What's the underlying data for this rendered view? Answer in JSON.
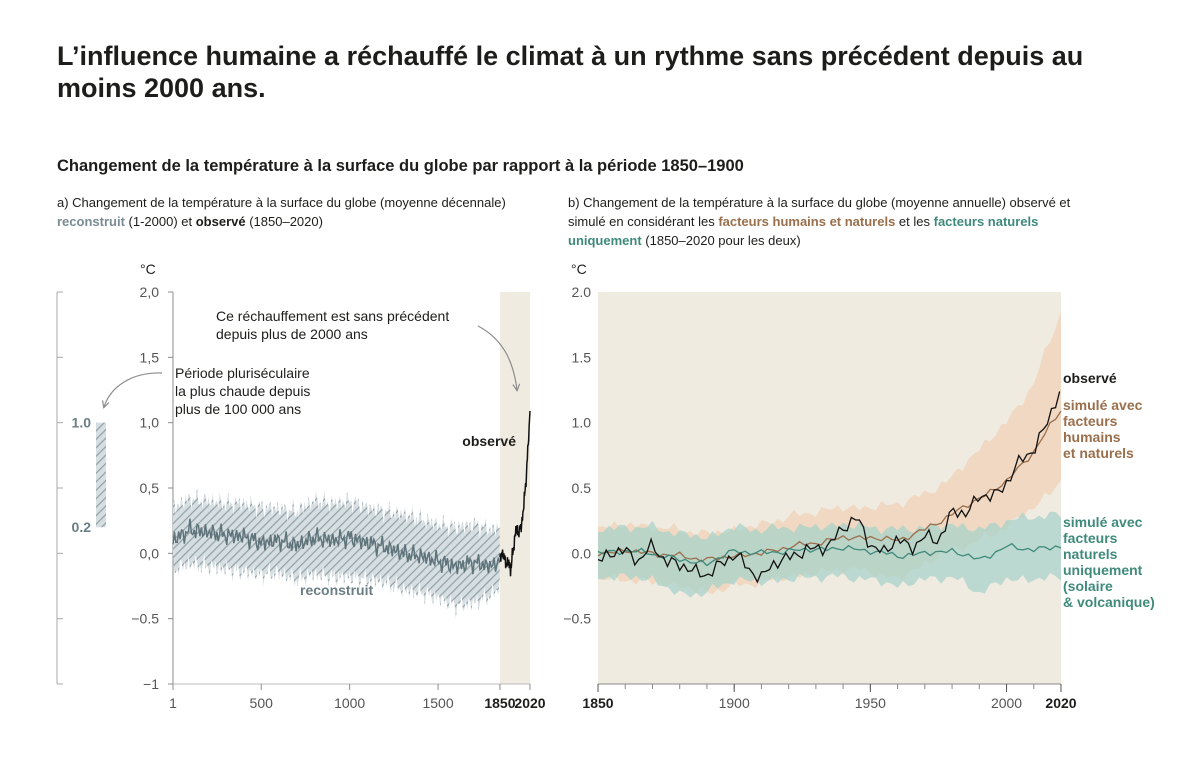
{
  "title": "L’influence humaine a réchauffé le climat à un rythme sans précédent depuis au moins 2000 ans.",
  "subtitle": "Changement de la température à la surface du globe par rapport à la période 1850–1900",
  "panel_a": {
    "caption_pre": "a) Changement de la température à la surface du globe (moyenne décennale) ",
    "caption_reconstructed": "reconstruit",
    "caption_mid": " (1-2000) et ",
    "caption_observed": "observé",
    "caption_post": " (1850–2020)"
  },
  "panel_b": {
    "caption_pre": "b) Changement de la température à la surface du globe (moyenne annuelle) observé et simulé en considérant les ",
    "caption_human": "facteurs humains et naturels",
    "caption_mid": " et les ",
    "caption_natural": "facteurs naturels uniquement",
    "caption_post": " (1850–2020 pour les deux)"
  },
  "colors": {
    "text": "#1d1d1b",
    "axis": "#8c8c8c",
    "reconstructed": "#5f737a",
    "reconstructed_band": "#a9b7bc",
    "period_shade": "#efebe1",
    "observed": "#111111",
    "human": "#9a6f4c",
    "human_band": "#f0d6bf",
    "natural": "#3f8a7b",
    "natural_band": "#a9d3c9"
  },
  "chart_data": [
    {
      "type": "line",
      "id": "panel_a",
      "unit_label": "°C",
      "xlim": [
        1,
        2020
      ],
      "ylim": [
        -1,
        2
      ],
      "xticks": [
        1,
        500,
        1000,
        1500,
        1850,
        2020
      ],
      "xtick_labels": [
        "1",
        "500",
        "1000",
        "1500",
        "1850",
        "2020"
      ],
      "xtick_bold": [
        false,
        false,
        false,
        false,
        true,
        true
      ],
      "yticks": [
        -1,
        -0.5,
        0,
        0.5,
        1,
        1.5,
        2
      ],
      "ytick_labels": [
        "−1",
        "−0.5",
        "0,0",
        "0,5",
        "1,0",
        "1,5",
        "2,0"
      ],
      "shaded_period": [
        1850,
        2020
      ],
      "series": [
        {
          "name": "reconstruit",
          "label": "reconstruit",
          "x": [
            1,
            100,
            200,
            300,
            400,
            500,
            600,
            700,
            800,
            900,
            1000,
            1100,
            1200,
            1300,
            1400,
            1500,
            1600,
            1700,
            1800,
            1850
          ],
          "values": [
            0.1,
            0.18,
            0.16,
            0.14,
            0.13,
            0.08,
            0.1,
            0.06,
            0.12,
            0.1,
            0.12,
            0.08,
            0.05,
            0.0,
            -0.02,
            -0.06,
            -0.1,
            -0.07,
            -0.1,
            -0.05
          ],
          "band_low": [
            -0.12,
            -0.08,
            -0.1,
            -0.12,
            -0.14,
            -0.16,
            -0.15,
            -0.2,
            -0.16,
            -0.18,
            -0.18,
            -0.2,
            -0.22,
            -0.28,
            -0.3,
            -0.34,
            -0.4,
            -0.38,
            -0.32,
            -0.25
          ],
          "band_high": [
            0.35,
            0.42,
            0.4,
            0.38,
            0.38,
            0.35,
            0.34,
            0.32,
            0.4,
            0.38,
            0.4,
            0.35,
            0.32,
            0.3,
            0.26,
            0.22,
            0.2,
            0.22,
            0.18,
            0.2
          ]
        },
        {
          "name": "observé",
          "label": "observé",
          "x": [
            1850,
            1860,
            1870,
            1880,
            1890,
            1900,
            1910,
            1920,
            1930,
            1940,
            1950,
            1960,
            1970,
            1980,
            1990,
            2000,
            2010,
            2020
          ],
          "values": [
            -0.05,
            0.0,
            -0.02,
            -0.05,
            -0.1,
            -0.05,
            -0.15,
            0.0,
            0.05,
            0.2,
            0.15,
            0.18,
            0.2,
            0.3,
            0.45,
            0.6,
            0.85,
            1.09
          ]
        }
      ],
      "inset": {
        "label": "Période pluriséculaire la plus chaude depuis plus de 100 000 ans",
        "low": 0.2,
        "high": 1.0,
        "low_label": "0.2",
        "high_label": "1.0"
      },
      "annotations": [
        {
          "id": "unprecedented",
          "line1": "Ce réchauffement est sans précédent",
          "line2": "depuis plus de 2000 ans"
        },
        {
          "id": "warmest",
          "line1": "Période pluriséculaire",
          "line2": "la plus chaude depuis",
          "line3": "plus de 100 000 ans"
        }
      ]
    },
    {
      "type": "line",
      "id": "panel_b",
      "unit_label": "°C",
      "xlim": [
        1850,
        2020
      ],
      "ylim": [
        -1,
        2
      ],
      "xticks": [
        1850,
        1900,
        1950,
        2000,
        2020
      ],
      "xtick_labels": [
        "1850",
        "1900",
        "1950",
        "2000",
        "2020"
      ],
      "xtick_bold": [
        true,
        false,
        false,
        false,
        true
      ],
      "yticks": [
        -0.5,
        0,
        0.5,
        1,
        1.5,
        2
      ],
      "ytick_labels": [
        "−0.5",
        "0.0",
        "0.5",
        "1.0",
        "1.5",
        "2.0"
      ],
      "series": [
        {
          "name": "observé",
          "label": "observé",
          "x": [
            1850,
            1855,
            1860,
            1865,
            1870,
            1875,
            1880,
            1885,
            1890,
            1895,
            1900,
            1905,
            1910,
            1915,
            1920,
            1925,
            1930,
            1935,
            1940,
            1945,
            1950,
            1955,
            1960,
            1965,
            1970,
            1975,
            1980,
            1985,
            1990,
            1995,
            2000,
            2005,
            2010,
            2015,
            2020
          ],
          "values": [
            -0.05,
            0.0,
            0.02,
            -0.05,
            0.05,
            -0.05,
            -0.1,
            -0.12,
            -0.18,
            -0.08,
            0.0,
            -0.12,
            -0.18,
            -0.08,
            -0.02,
            0.0,
            0.05,
            0.05,
            0.2,
            0.28,
            0.05,
            0.02,
            0.1,
            0.05,
            0.12,
            0.1,
            0.32,
            0.3,
            0.45,
            0.42,
            0.55,
            0.7,
            0.8,
            1.0,
            1.26
          ]
        },
        {
          "name": "simulé avec facteurs humains et naturels",
          "label": [
            "simulé avec",
            "facteurs",
            "humains",
            "et naturels"
          ],
          "x": [
            1850,
            1860,
            1870,
            1880,
            1890,
            1900,
            1910,
            1920,
            1930,
            1940,
            1950,
            1960,
            1970,
            1980,
            1990,
            2000,
            2010,
            2020
          ],
          "values": [
            0.0,
            0.02,
            0.0,
            -0.02,
            -0.05,
            -0.02,
            0.0,
            0.05,
            0.08,
            0.12,
            0.12,
            0.1,
            0.18,
            0.3,
            0.42,
            0.55,
            0.78,
            1.1
          ],
          "band_low": [
            -0.2,
            -0.2,
            -0.22,
            -0.25,
            -0.3,
            -0.25,
            -0.22,
            -0.18,
            -0.15,
            -0.12,
            -0.14,
            -0.2,
            -0.08,
            0.02,
            0.1,
            0.2,
            0.35,
            0.55
          ],
          "band_high": [
            0.2,
            0.22,
            0.2,
            0.18,
            0.15,
            0.18,
            0.22,
            0.28,
            0.32,
            0.35,
            0.35,
            0.38,
            0.45,
            0.58,
            0.8,
            1.0,
            1.3,
            1.85
          ]
        },
        {
          "name": "simulé avec facteurs naturels uniquement (solaire & volcanique)",
          "label": [
            "simulé avec",
            "facteurs",
            "naturels",
            "uniquement",
            "(solaire",
            "& volcanique)"
          ],
          "x": [
            1850,
            1860,
            1870,
            1880,
            1890,
            1900,
            1910,
            1920,
            1930,
            1940,
            1950,
            1960,
            1970,
            1980,
            1990,
            2000,
            2010,
            2020
          ],
          "values": [
            0.0,
            0.02,
            0.0,
            -0.05,
            -0.08,
            0.02,
            0.0,
            0.02,
            0.03,
            0.04,
            0.02,
            -0.02,
            0.0,
            0.02,
            -0.05,
            0.05,
            0.03,
            0.05
          ],
          "band_low": [
            -0.18,
            -0.18,
            -0.2,
            -0.32,
            -0.3,
            -0.2,
            -0.22,
            -0.2,
            -0.18,
            -0.18,
            -0.2,
            -0.25,
            -0.2,
            -0.18,
            -0.3,
            -0.2,
            -0.2,
            -0.18
          ],
          "band_high": [
            0.18,
            0.2,
            0.2,
            0.15,
            0.12,
            0.2,
            0.18,
            0.2,
            0.2,
            0.22,
            0.2,
            0.18,
            0.2,
            0.22,
            0.18,
            0.25,
            0.28,
            0.3
          ]
        }
      ]
    }
  ]
}
